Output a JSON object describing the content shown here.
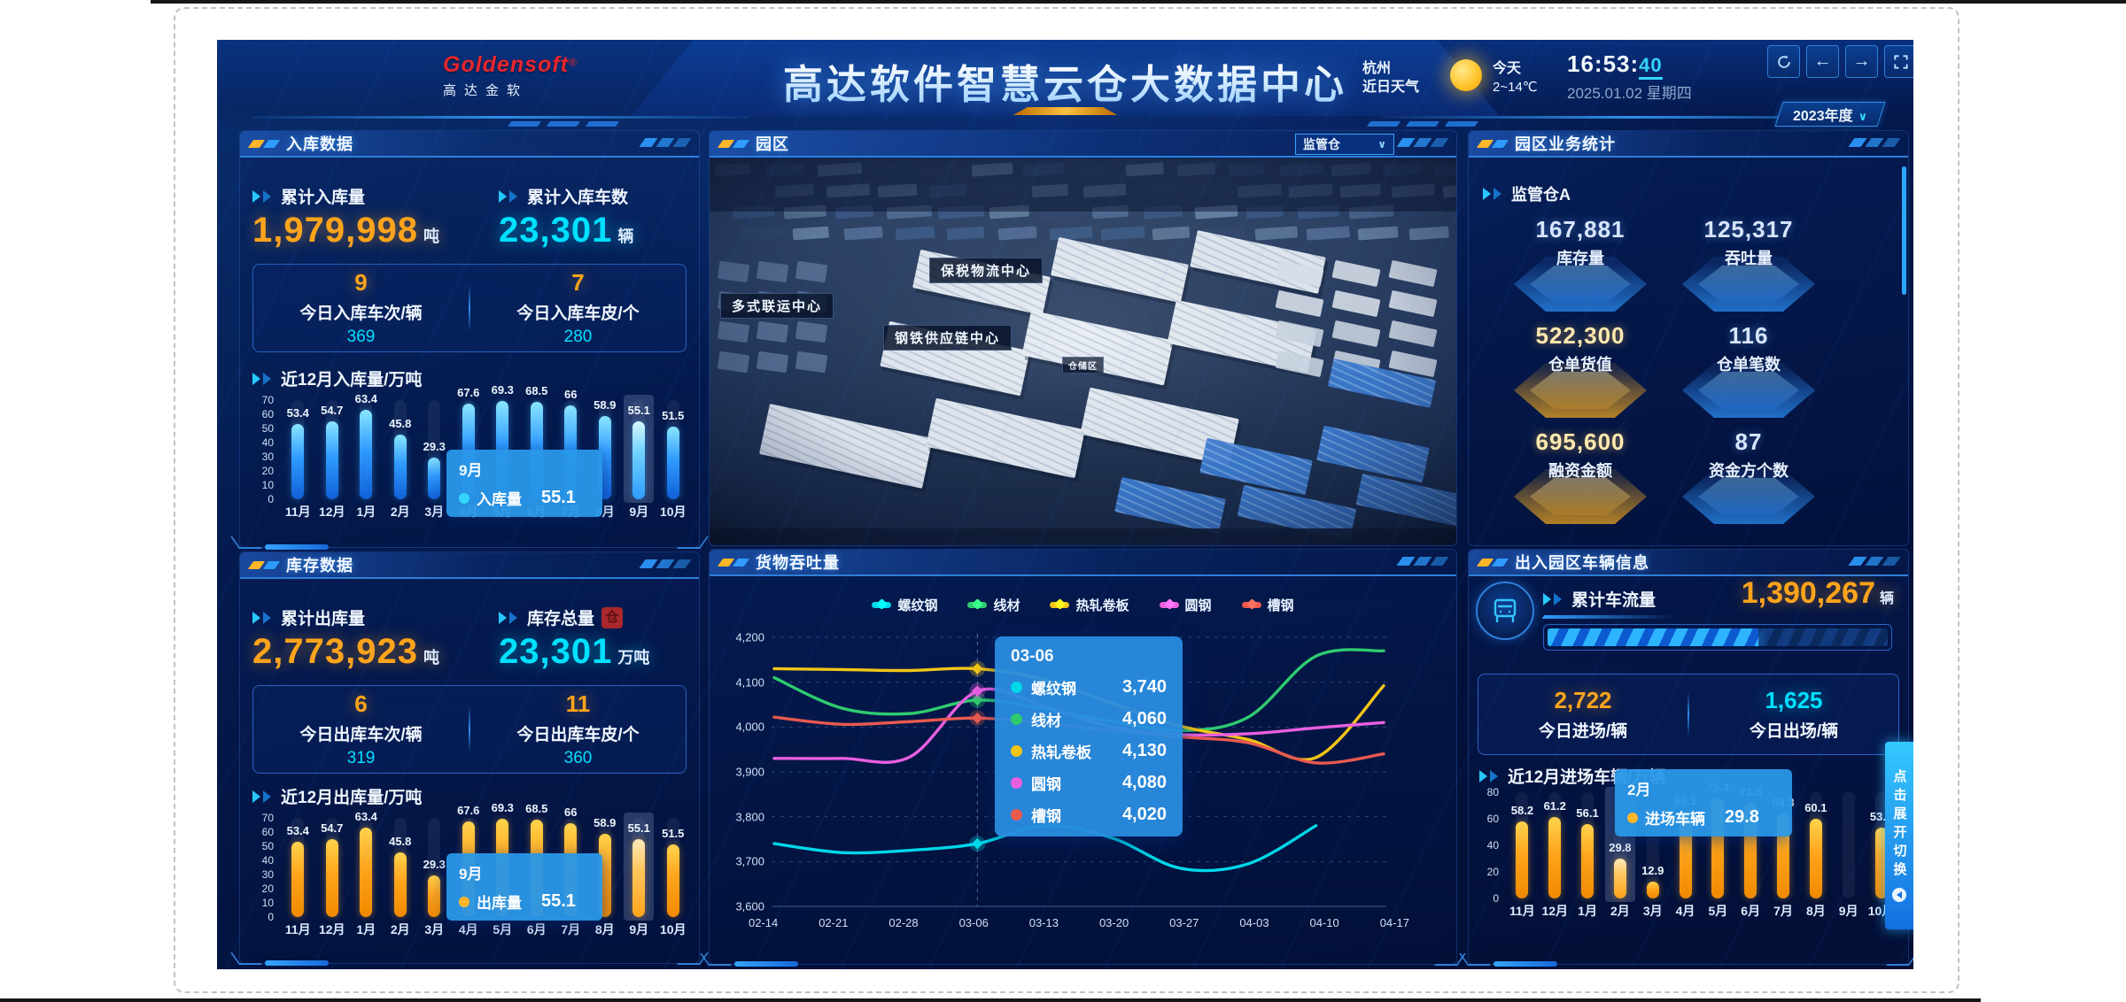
{
  "header": {
    "logo": {
      "brand": "Goldensoft",
      "reg": "®",
      "sub": "高达金软"
    },
    "title": "高达软件智慧云仓大数据中心",
    "weather": {
      "city": "杭州",
      "label": "近日天气",
      "day": "今天",
      "temp": "2~14℃"
    },
    "clock": {
      "time": "16:53:",
      "seconds": "40",
      "date": "2025.01.02 星期四"
    },
    "controls": [
      {
        "icon": "refresh-icon"
      },
      {
        "icon": "arrow-left-icon",
        "glyph": "←"
      },
      {
        "icon": "arrow-right-icon",
        "glyph": "→"
      },
      {
        "icon": "fullscreen-icon"
      }
    ],
    "year_select": {
      "value": "2023年度",
      "chevron": "∨"
    }
  },
  "inbound": {
    "title": "入库数据",
    "stats": [
      {
        "label": "累计入库量",
        "value": "1,979,998",
        "unit": "吨"
      },
      {
        "label": "累计入库车数",
        "value": "23,301",
        "unit": "辆"
      }
    ],
    "today": [
      {
        "value": "9",
        "label": "今日入库车次/辆",
        "sub": "369"
      },
      {
        "value": "7",
        "label": "今日入库车皮/个",
        "sub": "280"
      }
    ],
    "chart_title": "近12月入库量/万吨",
    "tooltip": {
      "title": "9月",
      "series": "入库量",
      "value": "55.1"
    }
  },
  "inventory": {
    "title": "库存数据",
    "stats": [
      {
        "label": "累计出库量",
        "value": "2,773,923",
        "unit": "吨"
      },
      {
        "label": "库存总量",
        "value": "23,301",
        "unit": "万吨",
        "badge": "仓"
      }
    ],
    "today": [
      {
        "value": "6",
        "label": "今日出库车次/辆",
        "sub": "319"
      },
      {
        "value": "11",
        "label": "今日出库车皮/个",
        "sub": "360"
      }
    ],
    "chart_title": "近12月出库量/万吨",
    "tooltip": {
      "title": "9月",
      "series": "出库量",
      "value": "55.1"
    }
  },
  "park": {
    "title": "园区",
    "select": {
      "value": "监管仓",
      "chevron": "∨"
    },
    "labels": [
      "保税物流中心",
      "多式联运中心",
      "钢铁供应链中心",
      "仓储区"
    ]
  },
  "throughput": {
    "title": "货物吞吐量",
    "tooltip": {
      "title": "03-06",
      "rows": [
        {
          "name": "螺纹钢",
          "value": "3,740",
          "color": "#00d7e9"
        },
        {
          "name": "线材",
          "value": "4,060",
          "color": "#2fca6f"
        },
        {
          "name": "热轧卷板",
          "value": "4,130",
          "color": "#f3c517"
        },
        {
          "name": "圆钢",
          "value": "4,080",
          "color": "#e95fe0"
        },
        {
          "name": "槽钢",
          "value": "4,020",
          "color": "#ea5a4f"
        }
      ]
    }
  },
  "business": {
    "title": "园区业务统计",
    "subtitle": "监管仓A",
    "stats": [
      {
        "value": "167,881",
        "label": "库存量",
        "tone": "blue"
      },
      {
        "value": "125,317",
        "label": "吞吐量",
        "tone": "blue"
      },
      {
        "value": "522,300",
        "label": "仓单货值",
        "tone": "gold"
      },
      {
        "value": "116",
        "label": "仓单笔数",
        "tone": "blue"
      },
      {
        "value": "695,600",
        "label": "融资金额",
        "tone": "gold"
      },
      {
        "value": "87",
        "label": "资金方个数",
        "tone": "blue"
      }
    ]
  },
  "vehicles": {
    "title": "出入园区车辆信息",
    "total": {
      "label": "累计车流量",
      "value": "1,390,267",
      "unit": "辆"
    },
    "today": [
      {
        "value": "2,722",
        "label": "今日进场/辆"
      },
      {
        "value": "1,625",
        "label": "今日出场/辆"
      }
    ],
    "chart_title": "近12月进场车辆/万辆",
    "tooltip": {
      "title": "2月",
      "series": "进场车辆",
      "value": "29.8"
    }
  },
  "side_button": {
    "label": "点击展开切换"
  },
  "colors": {
    "accent_orange": "#ffa41b",
    "accent_cyan": "#00e0ff",
    "tooltip_blue": "#2a8ce0",
    "bar_cyan_top": "#8ae6ff",
    "bar_cyan_bottom": "#1160d8",
    "bar_orange_top": "#ffd34d",
    "bar_orange_bottom": "#f08a00"
  },
  "chart_data": [
    {
      "type": "bar",
      "title": "近12月入库量/万吨",
      "categories": [
        "11月",
        "12月",
        "1月",
        "2月",
        "3月",
        "4月",
        "5月",
        "6月",
        "7月",
        "8月",
        "9月",
        "10月"
      ],
      "values": [
        53.4,
        54.7,
        63.4,
        45.8,
        29.3,
        67.6,
        69.3,
        68.5,
        66,
        58.9,
        55.1,
        51.5
      ],
      "ylim": [
        0,
        70
      ],
      "yticks": [
        0,
        10,
        20,
        30,
        40,
        50,
        60,
        70
      ],
      "highlight_category": "9月",
      "highlight_index": 10,
      "bar_color": "cyan-blue-gradient"
    },
    {
      "type": "bar",
      "title": "近12月出库量/万吨",
      "categories": [
        "11月",
        "12月",
        "1月",
        "2月",
        "3月",
        "4月",
        "5月",
        "6月",
        "7月",
        "8月",
        "9月",
        "10月"
      ],
      "values": [
        53.4,
        54.7,
        63.4,
        45.8,
        29.3,
        67.6,
        69.3,
        68.5,
        66,
        58.9,
        55.1,
        51.5
      ],
      "ylim": [
        0,
        70
      ],
      "yticks": [
        0,
        10,
        20,
        30,
        40,
        50,
        60,
        70
      ],
      "highlight_category": "9月",
      "highlight_index": 10,
      "bar_color": "orange-gradient"
    },
    {
      "type": "line",
      "title": "货物吞吐量",
      "x": [
        "02-14",
        "02-21",
        "02-28",
        "03-06",
        "03-13",
        "03-20",
        "03-27",
        "04-03",
        "04-10",
        "04-17"
      ],
      "ylim": [
        3600,
        4200
      ],
      "yticks": [
        3600,
        3700,
        3800,
        3900,
        4000,
        4100,
        4200
      ],
      "marker_x": "03-06",
      "marker_index": 3,
      "legend_position": "top",
      "grid": "dashed",
      "series": [
        {
          "name": "螺纹钢",
          "color": "#00d7e9",
          "values": [
            3740,
            3720,
            3725,
            3740,
            3780,
            3752,
            3685,
            3695,
            3780,
            null
          ]
        },
        {
          "name": "线材",
          "color": "#2fca6f",
          "values": [
            4110,
            4042,
            4030,
            4060,
            4040,
            4012,
            3992,
            4022,
            4158,
            4170
          ]
        },
        {
          "name": "热轧卷板",
          "color": "#f3c517",
          "values": [
            4130,
            4128,
            4126,
            4130,
            4105,
            4052,
            4002,
            3972,
            3932,
            4092
          ]
        },
        {
          "name": "圆钢",
          "color": "#e95fe0",
          "values": [
            3930,
            3930,
            3933,
            4080,
            4045,
            4000,
            3983,
            3985,
            3998,
            4010
          ]
        },
        {
          "name": "槽钢",
          "color": "#ea5a4f",
          "values": [
            4022,
            4006,
            4012,
            4020,
            4008,
            3992,
            3978,
            3965,
            3920,
            3940
          ]
        }
      ]
    },
    {
      "type": "bar",
      "title": "近12月进场车辆/万辆",
      "categories": [
        "11月",
        "12月",
        "1月",
        "2月",
        "3月",
        "4月",
        "5月",
        "6月",
        "7月",
        "8月",
        "9月",
        "10月"
      ],
      "values": [
        58.2,
        61.2,
        56.1,
        29.8,
        12.9,
        65.1,
        75.3,
        71.8,
        64.3,
        60.1,
        null,
        53.5
      ],
      "ylim": [
        0,
        80
      ],
      "yticks": [
        0,
        20,
        40,
        60,
        80
      ],
      "highlight_category": "2月",
      "highlight_index": 3,
      "bar_color": "orange-gradient"
    }
  ]
}
